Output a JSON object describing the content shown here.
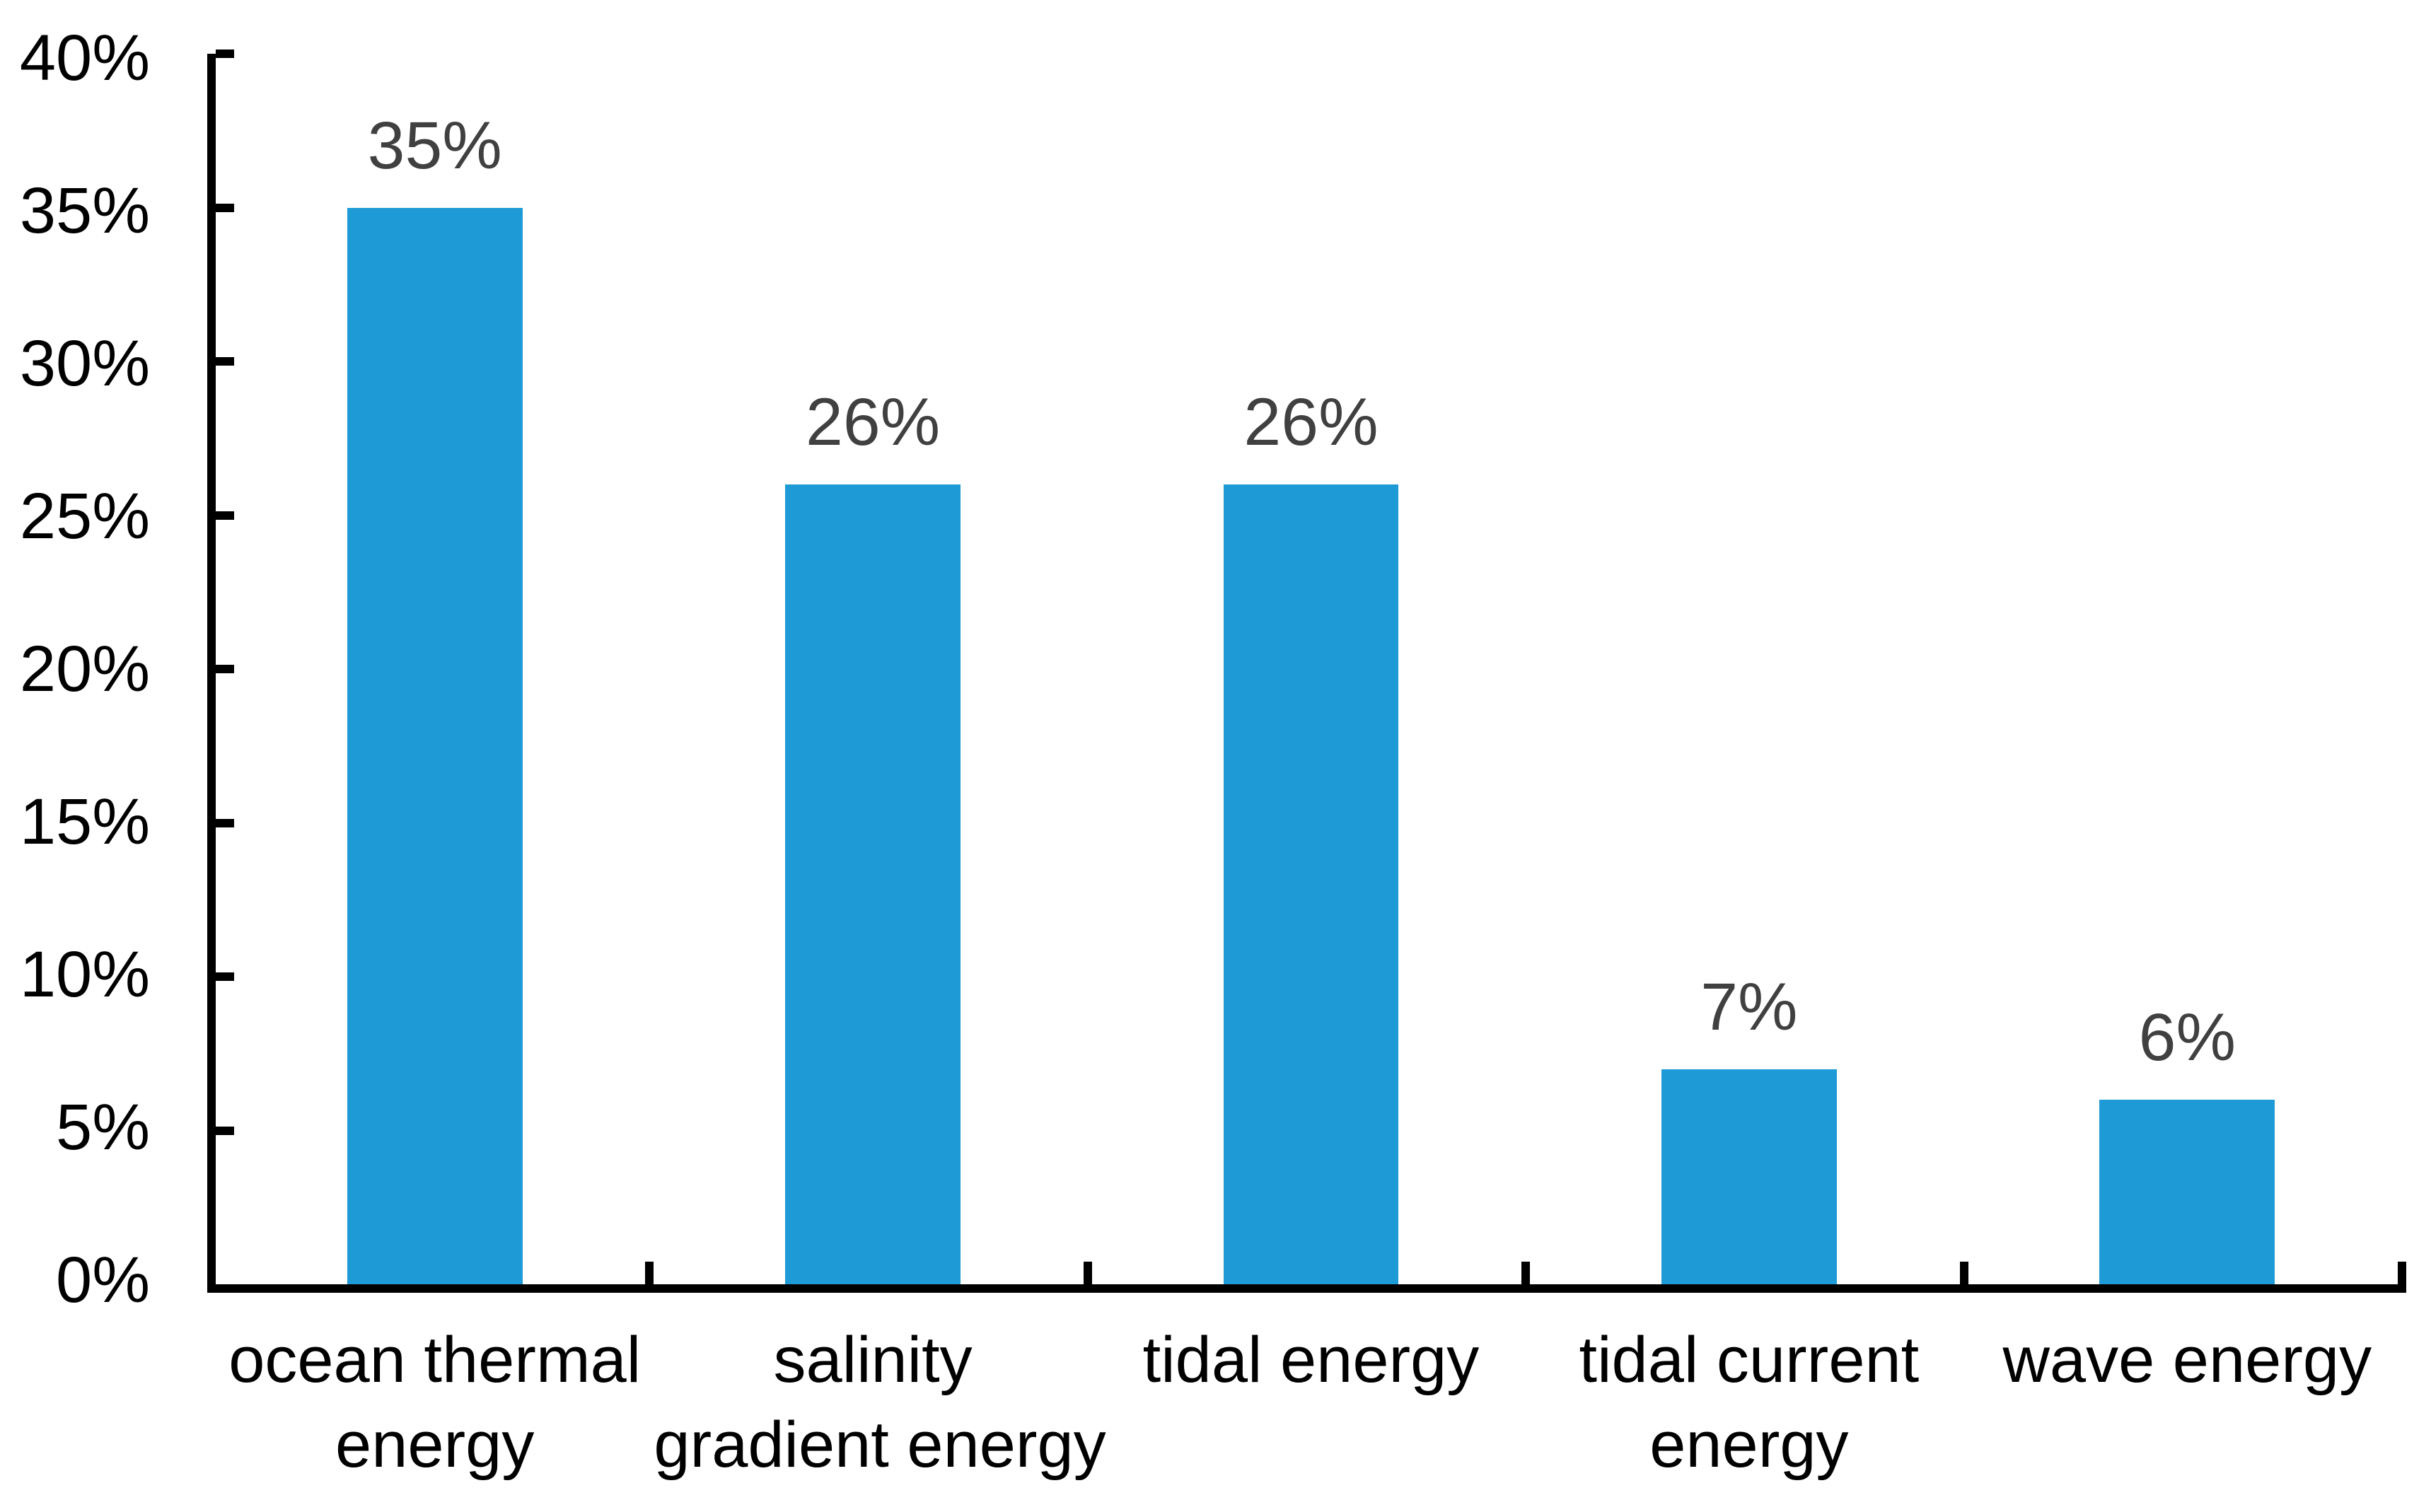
{
  "chart_data": {
    "type": "bar",
    "categories": [
      "ocean thermal energy",
      "salinity gradient energy",
      "tidal energy",
      "tidal current energy",
      "wave energy"
    ],
    "category_lines": [
      [
        "ocean thermal",
        "energy"
      ],
      [
        "salinity",
        "gradient energy"
      ],
      [
        "tidal energy"
      ],
      [
        "tidal current",
        "energy"
      ],
      [
        "wave energy"
      ]
    ],
    "values": [
      35,
      26,
      26,
      7,
      6
    ],
    "data_labels": [
      "35%",
      "26%",
      "26%",
      "7%",
      "6%"
    ],
    "title": "",
    "xlabel": "",
    "ylabel": "",
    "ylim": [
      0,
      40
    ],
    "ytick_step": 5,
    "ytick_labels": [
      "0%",
      "5%",
      "10%",
      "15%",
      "20%",
      "25%",
      "30%",
      "35%",
      "40%"
    ],
    "grid": false,
    "legend_position": "none",
    "colors": {
      "bar": "#1E9AD6",
      "data_label": "#404040",
      "axis": "#000000",
      "tick_label": "#000000",
      "background": "#FFFFFF"
    }
  }
}
